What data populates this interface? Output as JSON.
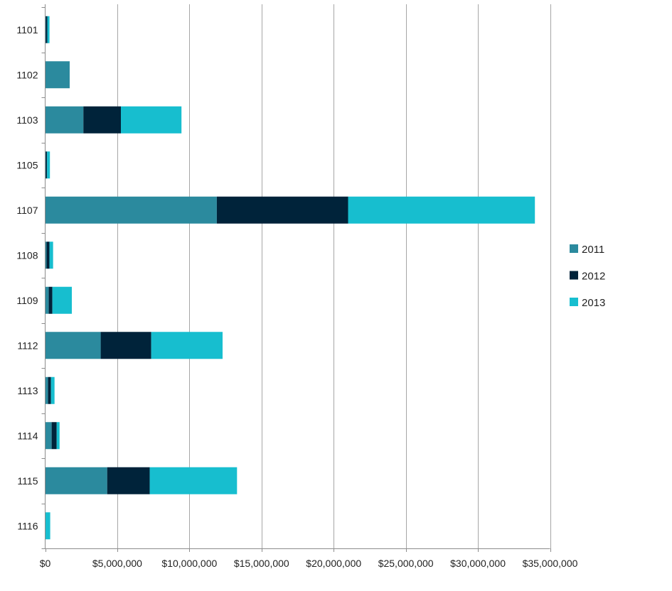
{
  "chart_data": {
    "type": "bar",
    "orientation": "horizontal",
    "stacked": true,
    "title": "",
    "xlabel": "",
    "ylabel": "",
    "categories": [
      "1101",
      "1102",
      "1103",
      "1105",
      "1107",
      "1108",
      "1109",
      "1112",
      "1113",
      "1114",
      "1115",
      "1116"
    ],
    "series": [
      {
        "name": "2011",
        "color": "#2b8a9e",
        "values": [
          50000,
          1700000,
          2650000,
          50000,
          11900000,
          100000,
          250000,
          3850000,
          200000,
          450000,
          4300000,
          0
        ]
      },
      {
        "name": "2012",
        "color": "#00233a",
        "values": [
          100000,
          0,
          2600000,
          80000,
          9100000,
          200000,
          250000,
          3500000,
          200000,
          350000,
          2950000,
          0
        ]
      },
      {
        "name": "2013",
        "color": "#17becf",
        "values": [
          150000,
          0,
          4200000,
          200000,
          12950000,
          250000,
          1350000,
          4950000,
          250000,
          200000,
          6050000,
          350000
        ]
      }
    ],
    "xlim": [
      0,
      35000000
    ],
    "x_ticks": [
      "$0",
      "$5,000,000",
      "$10,000,000",
      "$15,000,000",
      "$20,000,000",
      "$25,000,000",
      "$30,000,000",
      "$35,000,000"
    ],
    "x_tick_values": [
      0,
      5000000,
      10000000,
      15000000,
      20000000,
      25000000,
      30000000,
      35000000
    ],
    "grid": true,
    "legend": "right"
  }
}
